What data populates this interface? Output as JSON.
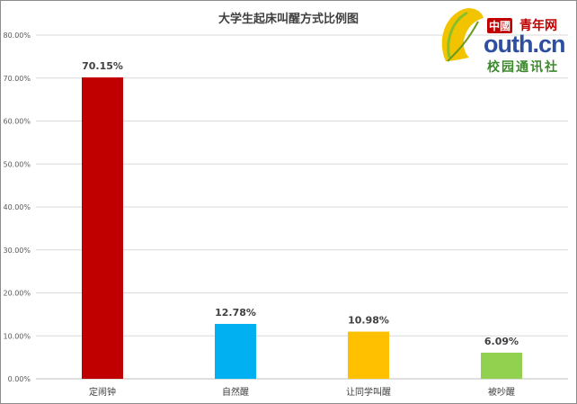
{
  "chart_data": {
    "type": "bar",
    "title": "大学生起床叫醒方式比例图",
    "categories": [
      "定闹钟",
      "自然醒",
      "让同学叫醒",
      "被吵醒"
    ],
    "values": [
      70.15,
      12.78,
      10.98,
      6.09
    ],
    "value_labels": [
      "70.15%",
      "12.78%",
      "10.98%",
      "6.09%"
    ],
    "bar_colors": [
      "#c00000",
      "#00b0f0",
      "#ffc000",
      "#92d050"
    ],
    "ylim": [
      0,
      80
    ],
    "yticks": [
      0,
      10,
      20,
      30,
      40,
      50,
      60,
      70,
      80
    ],
    "ytick_labels": [
      "0.00%",
      "10.00%",
      "20.00%",
      "30.00%",
      "40.00%",
      "50.00%",
      "60.00%",
      "70.00%",
      "80.00%"
    ],
    "grid": true,
    "legend": "none"
  },
  "logo": {
    "china_badge": "中國",
    "site_name": "青年网",
    "domain": "outh.cn",
    "tagline": "校园通讯社"
  }
}
